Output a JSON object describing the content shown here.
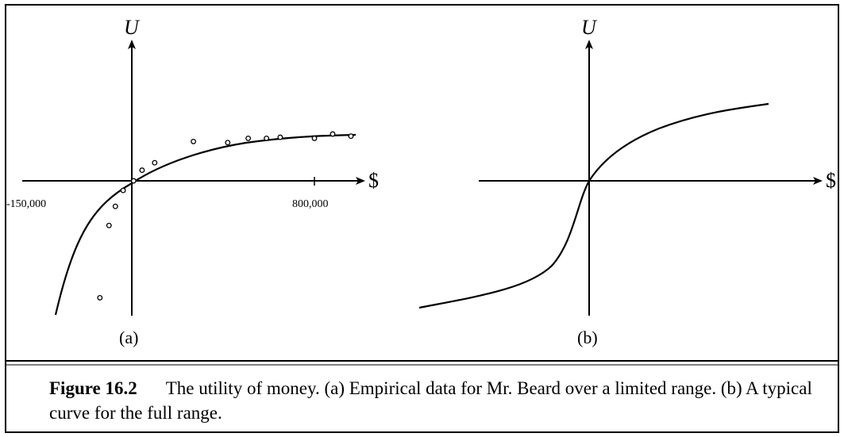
{
  "chart_data": [
    {
      "type": "scatter",
      "panel_label": "(a)",
      "xlabel": "$",
      "ylabel": "U",
      "x_tick_labels": [
        "-150,000",
        "800,000"
      ],
      "axis_style": "cross-axes through origin with arrowheads",
      "grid": false,
      "series": [
        {
          "kind": "points",
          "points": [
            [
              -140000,
              -1.1
            ],
            [
              -100000,
              -0.42
            ],
            [
              -72000,
              -0.24
            ],
            [
              -38000,
              -0.09
            ],
            [
              8000,
              0.0
            ],
            [
              45000,
              0.1
            ],
            [
              100000,
              0.17
            ],
            [
              270000,
              0.37
            ],
            [
              420000,
              0.36
            ],
            [
              510000,
              0.4
            ],
            [
              590000,
              0.4
            ],
            [
              650000,
              0.41
            ],
            [
              800000,
              0.4
            ],
            [
              880000,
              0.44
            ],
            [
              960000,
              0.42
            ]
          ]
        },
        {
          "kind": "fitted-curve",
          "shape": "concave increasing, saturating for large x"
        }
      ]
    },
    {
      "type": "line",
      "panel_label": "(b)",
      "xlabel": "$",
      "ylabel": "U",
      "axis_style": "cross-axes through origin with arrowheads",
      "grid": false,
      "series": [
        {
          "kind": "curve",
          "shape": "S-shaped: convex for losses, concave for gains, through origin"
        }
      ]
    }
  ],
  "caption": {
    "label": "Figure 16.2",
    "text": "The utility of money. (a) Empirical data for Mr. Beard over a limited range. (b) A typical curve for the full range."
  }
}
